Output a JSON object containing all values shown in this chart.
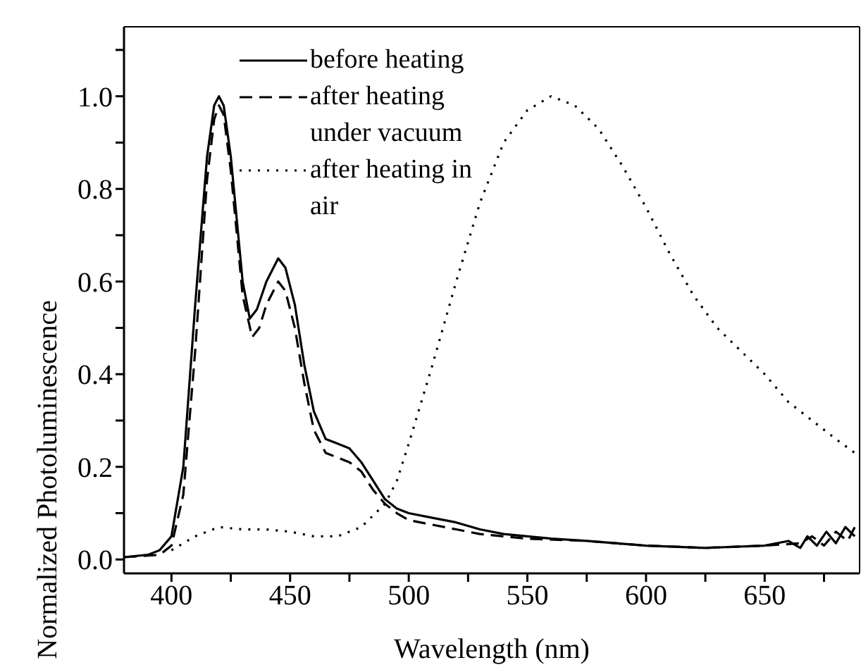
{
  "chart_data": {
    "type": "line",
    "xlabel": "Wavelength (nm)",
    "ylabel": "Normalized Photoluminescence",
    "xlim": [
      380,
      690
    ],
    "ylim": [
      -0.03,
      1.15
    ],
    "xticks": [
      400,
      {
        "value": 425,
        "label": null
      },
      450,
      {
        "value": 475,
        "label": null
      },
      500,
      {
        "value": 525,
        "label": null
      },
      550,
      {
        "value": 575,
        "label": null
      },
      600,
      {
        "value": 625,
        "label": null
      },
      650,
      {
        "value": 675,
        "label": null
      }
    ],
    "yticks": [
      {
        "value": 0,
        "label": "0.0"
      },
      {
        "value": 0.1,
        "label": null
      },
      0.2,
      {
        "value": 0.3,
        "label": null
      },
      0.4,
      {
        "value": 0.5,
        "label": null
      },
      0.6,
      {
        "value": 0.7,
        "label": null
      },
      0.8,
      {
        "value": 0.9,
        "label": null
      },
      {
        "value": 1,
        "label": "1.0"
      },
      {
        "value": 1.1,
        "label": null
      }
    ],
    "grid": false,
    "legend": "top left",
    "marker": "none",
    "series": [
      {
        "name": "before heating",
        "color": "#000000",
        "line_style": "solid",
        "x": [
          380,
          390,
          395,
          400,
          405,
          410,
          415,
          418,
          420,
          422,
          425,
          430,
          433,
          436,
          440,
          445,
          448,
          452,
          456,
          460,
          465,
          470,
          475,
          480,
          485,
          490,
          495,
          500,
          510,
          520,
          530,
          540,
          550,
          560,
          575,
          600,
          625,
          650,
          660,
          665,
          668,
          672,
          676,
          680,
          684,
          688
        ],
        "values": [
          0.005,
          0.01,
          0.02,
          0.05,
          0.2,
          0.55,
          0.87,
          0.98,
          1.0,
          0.98,
          0.87,
          0.6,
          0.52,
          0.54,
          0.6,
          0.65,
          0.63,
          0.55,
          0.42,
          0.32,
          0.26,
          0.25,
          0.24,
          0.21,
          0.17,
          0.13,
          0.11,
          0.1,
          0.09,
          0.08,
          0.065,
          0.055,
          0.05,
          0.045,
          0.04,
          0.03,
          0.025,
          0.03,
          0.04,
          0.025,
          0.05,
          0.03,
          0.06,
          0.035,
          0.07,
          0.05
        ]
      },
      {
        "name": "after heating under vacuum",
        "color": "#000000",
        "line_style": "dashed",
        "x": [
          380,
          395,
          400,
          405,
          410,
          415,
          418,
          420,
          422,
          425,
          430,
          434,
          437,
          440,
          445,
          448,
          452,
          456,
          460,
          465,
          470,
          475,
          480,
          485,
          490,
          495,
          500,
          510,
          520,
          530,
          540,
          550,
          575,
          600,
          625,
          650,
          665,
          670,
          675,
          680,
          685,
          688
        ],
        "values": [
          0.005,
          0.01,
          0.03,
          0.14,
          0.45,
          0.82,
          0.95,
          0.98,
          0.96,
          0.84,
          0.57,
          0.48,
          0.5,
          0.55,
          0.6,
          0.58,
          0.5,
          0.38,
          0.28,
          0.23,
          0.22,
          0.21,
          0.19,
          0.15,
          0.12,
          0.1,
          0.085,
          0.075,
          0.065,
          0.055,
          0.05,
          0.045,
          0.04,
          0.03,
          0.025,
          0.03,
          0.035,
          0.05,
          0.03,
          0.06,
          0.04,
          0.07
        ]
      },
      {
        "name": "after heating in air",
        "color": "#000000",
        "line_style": "dotted",
        "x": [
          400,
          410,
          420,
          430,
          440,
          450,
          460,
          470,
          480,
          490,
          495,
          500,
          510,
          520,
          530,
          540,
          550,
          560,
          570,
          580,
          590,
          600,
          610,
          620,
          630,
          640,
          650,
          660,
          670,
          680,
          688
        ],
        "values": [
          0.02,
          0.05,
          0.07,
          0.065,
          0.065,
          0.06,
          0.05,
          0.05,
          0.07,
          0.12,
          0.17,
          0.25,
          0.42,
          0.6,
          0.77,
          0.9,
          0.97,
          1.0,
          0.98,
          0.93,
          0.85,
          0.76,
          0.66,
          0.57,
          0.5,
          0.45,
          0.4,
          0.34,
          0.3,
          0.26,
          0.23
        ]
      }
    ]
  }
}
